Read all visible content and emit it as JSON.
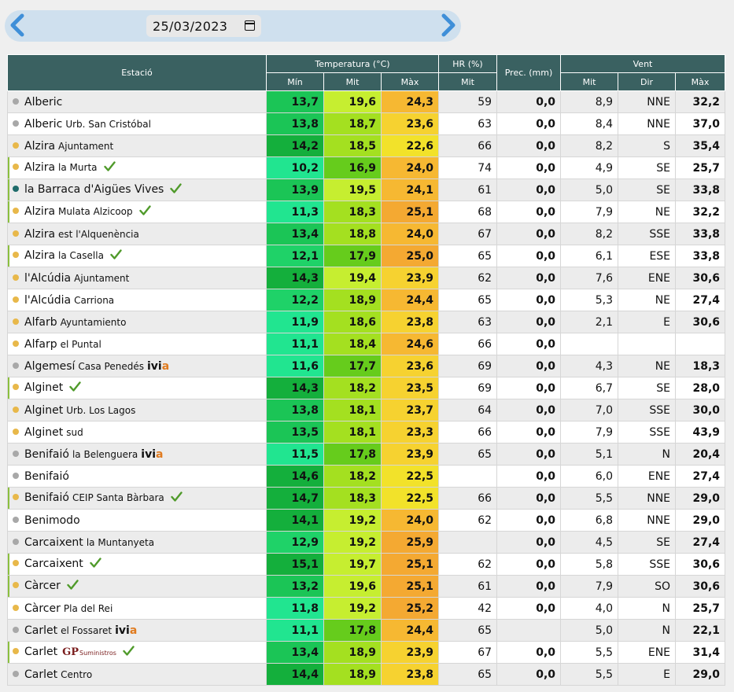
{
  "date_bar": {
    "date": "25/03/2023",
    "prev_icon": "chevron-left-icon",
    "next_icon": "chevron-right-icon",
    "calendar_icon": "calendar-icon"
  },
  "headers": {
    "station": "Estació",
    "temperature": "Temperatura (°C)",
    "humidity": "HR (%)",
    "precipitation": "Prec. (mm)",
    "wind": "Vent",
    "min": "Mín",
    "avg": "Mit",
    "max": "Màx",
    "hr_avg": "Mit",
    "wind_avg": "Mit",
    "wind_dir": "Dir",
    "wind_max": "Màx"
  },
  "colors": {
    "header": "#3a6161",
    "dot_yellow": "#e8b84a",
    "dot_gray": "#a8a8a8",
    "dot_teal": "#1f6b6b",
    "check": "#4f9a2a"
  },
  "rows": [
    {
      "name": "Alberic",
      "sub": "",
      "dot": "gray",
      "check": false,
      "brand": "",
      "tmin": "13,7",
      "tavg": "19,6",
      "tmax": "24,3",
      "hr": "59",
      "prec": "0,0",
      "wavg": "8,9",
      "wdir": "NNE",
      "wmax": "32,2"
    },
    {
      "name": "Alberic",
      "sub": "Urb. San Cristóbal",
      "dot": "gray",
      "check": false,
      "brand": "",
      "tmin": "13,8",
      "tavg": "18,7",
      "tmax": "23,6",
      "hr": "63",
      "prec": "0,0",
      "wavg": "8,4",
      "wdir": "NNE",
      "wmax": "37,0"
    },
    {
      "name": "Alzira",
      "sub": "Ajuntament",
      "dot": "yellow",
      "check": false,
      "brand": "",
      "tmin": "14,2",
      "tavg": "18,5",
      "tmax": "22,6",
      "hr": "66",
      "prec": "0,0",
      "wavg": "8,2",
      "wdir": "S",
      "wmax": "35,4"
    },
    {
      "name": "Alzira",
      "sub": "la Murta",
      "dot": "yellow",
      "check": true,
      "brand": "",
      "tmin": "10,2",
      "tavg": "16,9",
      "tmax": "24,0",
      "hr": "74",
      "prec": "0,0",
      "wavg": "4,9",
      "wdir": "SE",
      "wmax": "25,7"
    },
    {
      "name": "la Barraca d'Aigües Vives",
      "sub": "",
      "dot": "teal",
      "check": true,
      "brand": "",
      "tmin": "13,9",
      "tavg": "19,5",
      "tmax": "24,1",
      "hr": "61",
      "prec": "0,0",
      "wavg": "5,0",
      "wdir": "SE",
      "wmax": "33,8"
    },
    {
      "name": "Alzira",
      "sub": "Mulata Alzicoop",
      "dot": "yellow",
      "check": true,
      "brand": "",
      "tmin": "11,3",
      "tavg": "18,3",
      "tmax": "25,1",
      "hr": "68",
      "prec": "0,0",
      "wavg": "7,9",
      "wdir": "NE",
      "wmax": "32,2"
    },
    {
      "name": "Alzira",
      "sub": "est l'Alquenència",
      "dot": "yellow",
      "check": false,
      "brand": "",
      "tmin": "13,4",
      "tavg": "18,8",
      "tmax": "24,0",
      "hr": "67",
      "prec": "0,0",
      "wavg": "8,2",
      "wdir": "SSE",
      "wmax": "33,8"
    },
    {
      "name": "Alzira",
      "sub": "la Casella",
      "dot": "yellow",
      "check": true,
      "brand": "",
      "tmin": "12,1",
      "tavg": "17,9",
      "tmax": "25,0",
      "hr": "65",
      "prec": "0,0",
      "wavg": "6,1",
      "wdir": "ESE",
      "wmax": "33,8"
    },
    {
      "name": "l'Alcúdia",
      "sub": "Ajuntament",
      "dot": "yellow",
      "check": false,
      "brand": "",
      "tmin": "14,3",
      "tavg": "19,4",
      "tmax": "23,9",
      "hr": "62",
      "prec": "0,0",
      "wavg": "7,6",
      "wdir": "ENE",
      "wmax": "30,6"
    },
    {
      "name": "l'Alcúdia",
      "sub": "Carriona",
      "dot": "yellow",
      "check": false,
      "brand": "",
      "tmin": "12,2",
      "tavg": "18,9",
      "tmax": "24,4",
      "hr": "65",
      "prec": "0,0",
      "wavg": "5,3",
      "wdir": "NE",
      "wmax": "27,4"
    },
    {
      "name": "Alfarb",
      "sub": "Ayuntamiento",
      "dot": "yellow",
      "check": false,
      "brand": "",
      "tmin": "11,9",
      "tavg": "18,6",
      "tmax": "23,8",
      "hr": "63",
      "prec": "0,0",
      "wavg": "2,1",
      "wdir": "E",
      "wmax": "30,6"
    },
    {
      "name": "Alfarp",
      "sub": "el Puntal",
      "dot": "yellow",
      "check": false,
      "brand": "",
      "tmin": "11,1",
      "tavg": "18,4",
      "tmax": "24,6",
      "hr": "66",
      "prec": "0,0",
      "wavg": "",
      "wdir": "",
      "wmax": ""
    },
    {
      "name": "Algemesí",
      "sub": "Casa Penedés",
      "dot": "gray",
      "check": false,
      "brand": "ivia",
      "tmin": "11,6",
      "tavg": "17,7",
      "tmax": "23,6",
      "hr": "69",
      "prec": "0,0",
      "wavg": "4,3",
      "wdir": "NE",
      "wmax": "18,3"
    },
    {
      "name": "Alginet",
      "sub": "",
      "dot": "yellow",
      "check": true,
      "brand": "",
      "tmin": "14,3",
      "tavg": "18,2",
      "tmax": "23,5",
      "hr": "69",
      "prec": "0,0",
      "wavg": "6,7",
      "wdir": "SE",
      "wmax": "28,0"
    },
    {
      "name": "Alginet",
      "sub": "Urb. Los Lagos",
      "dot": "yellow",
      "check": false,
      "brand": "",
      "tmin": "13,8",
      "tavg": "18,1",
      "tmax": "23,7",
      "hr": "64",
      "prec": "0,0",
      "wavg": "7,0",
      "wdir": "SSE",
      "wmax": "30,0"
    },
    {
      "name": "Alginet",
      "sub": "sud",
      "dot": "yellow",
      "check": false,
      "brand": "",
      "tmin": "13,5",
      "tavg": "18,1",
      "tmax": "23,3",
      "hr": "66",
      "prec": "0,0",
      "wavg": "7,9",
      "wdir": "SSE",
      "wmax": "43,9"
    },
    {
      "name": "Benifaió",
      "sub": "la Belenguera",
      "dot": "gray",
      "check": false,
      "brand": "ivia",
      "tmin": "11,5",
      "tavg": "17,8",
      "tmax": "23,9",
      "hr": "65",
      "prec": "0,0",
      "wavg": "5,1",
      "wdir": "N",
      "wmax": "20,4"
    },
    {
      "name": "Benifaió",
      "sub": "",
      "dot": "gray",
      "check": false,
      "brand": "",
      "tmin": "14,6",
      "tavg": "18,2",
      "tmax": "22,5",
      "hr": "",
      "prec": "0,0",
      "wavg": "6,0",
      "wdir": "ENE",
      "wmax": "27,4"
    },
    {
      "name": "Benifaió",
      "sub": "CEIP Santa Bàrbara",
      "dot": "yellow",
      "check": true,
      "brand": "",
      "tmin": "14,7",
      "tavg": "18,3",
      "tmax": "22,5",
      "hr": "66",
      "prec": "0,0",
      "wavg": "5,5",
      "wdir": "NNE",
      "wmax": "29,0"
    },
    {
      "name": "Benimodo",
      "sub": "",
      "dot": "gray",
      "check": false,
      "brand": "",
      "tmin": "14,1",
      "tavg": "19,2",
      "tmax": "24,0",
      "hr": "62",
      "prec": "0,0",
      "wavg": "6,8",
      "wdir": "NNE",
      "wmax": "29,0"
    },
    {
      "name": "Carcaixent",
      "sub": "la Muntanyeta",
      "dot": "gray",
      "check": false,
      "brand": "",
      "tmin": "12,9",
      "tavg": "19,2",
      "tmax": "25,9",
      "hr": "",
      "prec": "0,0",
      "wavg": "4,5",
      "wdir": "SE",
      "wmax": "27,4"
    },
    {
      "name": "Carcaixent",
      "sub": "",
      "dot": "yellow",
      "check": true,
      "brand": "",
      "tmin": "15,1",
      "tavg": "19,7",
      "tmax": "25,1",
      "hr": "62",
      "prec": "0,0",
      "wavg": "5,8",
      "wdir": "SSE",
      "wmax": "30,6"
    },
    {
      "name": "Càrcer",
      "sub": "",
      "dot": "yellow",
      "check": true,
      "brand": "",
      "tmin": "13,2",
      "tavg": "19,6",
      "tmax": "25,1",
      "hr": "61",
      "prec": "0,0",
      "wavg": "7,9",
      "wdir": "SO",
      "wmax": "30,6"
    },
    {
      "name": "Càrcer",
      "sub": "Pla del Rei",
      "dot": "yellow",
      "check": false,
      "brand": "",
      "tmin": "11,8",
      "tavg": "19,2",
      "tmax": "25,2",
      "hr": "42",
      "prec": "0,0",
      "wavg": "4,0",
      "wdir": "N",
      "wmax": "25,7"
    },
    {
      "name": "Carlet",
      "sub": "el Fossaret",
      "dot": "gray",
      "check": false,
      "brand": "ivia",
      "tmin": "11,1",
      "tavg": "17,8",
      "tmax": "24,4",
      "hr": "65",
      "prec": "",
      "wavg": "5,0",
      "wdir": "N",
      "wmax": "22,1"
    },
    {
      "name": "Carlet",
      "sub": "",
      "dot": "yellow",
      "check": true,
      "brand": "gp",
      "tmin": "13,4",
      "tavg": "18,9",
      "tmax": "23,9",
      "hr": "67",
      "prec": "0,0",
      "wavg": "5,5",
      "wdir": "ENE",
      "wmax": "31,4"
    },
    {
      "name": "Carlet",
      "sub": "Centro",
      "dot": "gray",
      "check": false,
      "brand": "",
      "tmin": "14,4",
      "tavg": "18,9",
      "tmax": "23,8",
      "hr": "65",
      "prec": "0,0",
      "wavg": "5,5",
      "wdir": "E",
      "wmax": "29,0"
    }
  ],
  "brands": {
    "ivia_main": "ivi",
    "ivia_tail": "a",
    "gp_main": "GP",
    "gp_sub": "Suministros"
  }
}
